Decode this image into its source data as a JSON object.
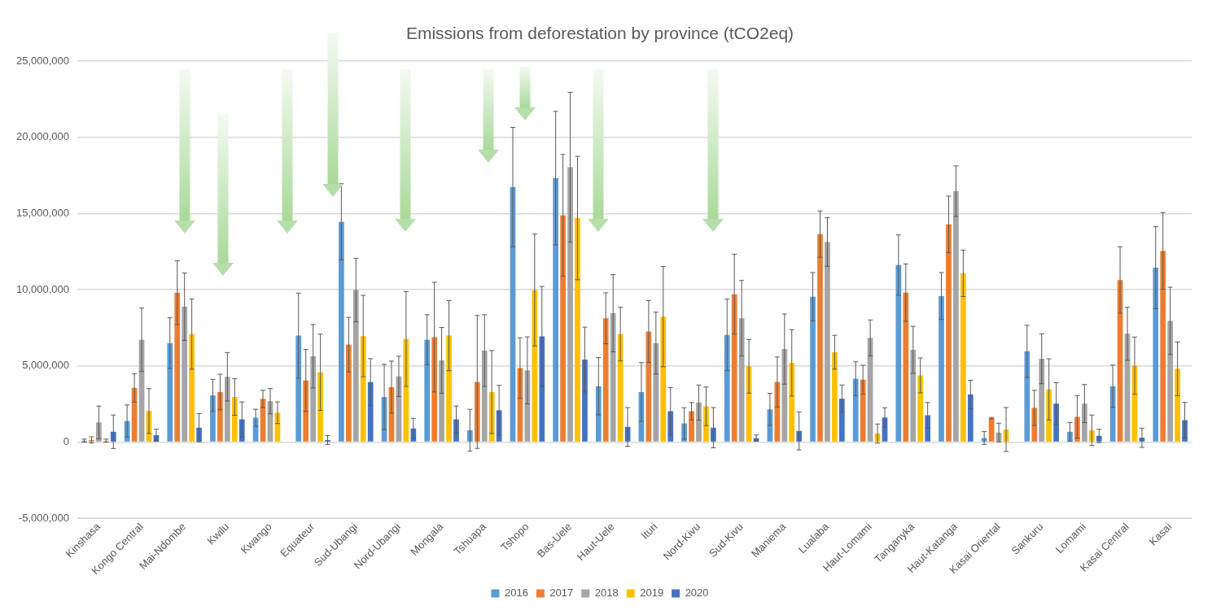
{
  "chart_data": {
    "type": "bar",
    "title": "Emissions from deforestation by province (tCO2eq)",
    "categories": [
      "Kinshasa",
      "Kongo Central",
      "Mai-Ndombe",
      "Kwilu",
      "Kwango",
      "Equateur",
      "Sud-Ubangi",
      "Nord-Ubangi",
      "Mongala",
      "Tshuapa",
      "Tshopo",
      "Bas-Uele",
      "Haut-Uele",
      "Ituri",
      "Nord-Kivu",
      "Sud-Kivu",
      "Maniema",
      "Lualaba",
      "Haut-Lomami",
      "Tanganyka",
      "Haut-Katanga",
      "Kasai Oriental",
      "Sankuru",
      "Lomami",
      "Kasai Central",
      "Kasai"
    ],
    "series": [
      {
        "name": "2016",
        "color": "#5b9bd5",
        "values": [
          100000,
          1390000,
          6500000,
          3070000,
          1600000,
          6990000,
          14460000,
          2960000,
          6720000,
          780000,
          16740000,
          17330000,
          3670000,
          3290000,
          1230000,
          7040000,
          2150000,
          9540000,
          4160000,
          11620000,
          9590000,
          270000,
          5960000,
          680000,
          3670000,
          11450000
        ],
        "errors": [
          100000,
          1050000,
          1660000,
          1050000,
          560000,
          2790000,
          2500000,
          2150000,
          1640000,
          1370000,
          3920000,
          4380000,
          1880000,
          1930000,
          1030000,
          2350000,
          1050000,
          1590000,
          1110000,
          1980000,
          1540000,
          420000,
          1710000,
          610000,
          1390000,
          2690000
        ]
      },
      {
        "name": "2017",
        "color": "#ed7d31",
        "values": [
          150000,
          3560000,
          9810000,
          3290000,
          2840000,
          4050000,
          6400000,
          3610000,
          6890000,
          3950000,
          4860000,
          14880000,
          8130000,
          7260000,
          2030000,
          9710000,
          3950000,
          13650000,
          4100000,
          9810000,
          14290000,
          1570000,
          2250000,
          1660000,
          10640000,
          12550000
        ],
        "errors": [
          200000,
          930000,
          2090000,
          1170000,
          570000,
          2030000,
          1790000,
          1710000,
          3600000,
          4360000,
          1990000,
          4000000,
          1670000,
          2030000,
          570000,
          2620000,
          1640000,
          1520000,
          950000,
          1880000,
          1860000,
          50000,
          1150000,
          1390000,
          2180000,
          2520000
        ]
      },
      {
        "name": "2018",
        "color": "#a5a5a5",
        "values": [
          1300000,
          6720000,
          8890000,
          4290000,
          2690000,
          5640000,
          9980000,
          4320000,
          5370000,
          6010000,
          4710000,
          18040000,
          8460000,
          6500000,
          2600000,
          8130000,
          6110000,
          13140000,
          6840000,
          6060000,
          16470000,
          630000,
          5470000,
          2530000,
          7110000,
          7960000
        ],
        "errors": [
          1070000,
          2080000,
          2210000,
          1590000,
          830000,
          2080000,
          2080000,
          1320000,
          2160000,
          2350000,
          2200000,
          4920000,
          2530000,
          2030000,
          1150000,
          2480000,
          2300000,
          1600000,
          1180000,
          1540000,
          1660000,
          610000,
          1640000,
          1250000,
          1740000,
          2210000
        ]
      },
      {
        "name": "2019",
        "color": "#ffc000",
        "values": [
          100000,
          2040000,
          7090000,
          2960000,
          1930000,
          4590000,
          6960000,
          6770000,
          6990000,
          3290000,
          9980000,
          14710000,
          7090000,
          8240000,
          2350000,
          4980000,
          5200000,
          5900000,
          560000,
          4380000,
          11080000,
          830000,
          3460000,
          780000,
          5020000,
          4810000
        ],
        "errors": [
          100000,
          1470000,
          2300000,
          1200000,
          710000,
          2500000,
          2670000,
          3110000,
          2300000,
          2720000,
          3670000,
          4050000,
          1760000,
          3290000,
          1270000,
          1760000,
          2180000,
          1110000,
          630000,
          1150000,
          1520000,
          1440000,
          2010000,
          1000000,
          1880000,
          1760000
        ]
      },
      {
        "name": "2020",
        "color": "#4472c4",
        "values": [
          680000,
          460000,
          950000,
          1490000,
          0,
          140000,
          3940000,
          900000,
          1490000,
          2090000,
          6940000,
          5420000,
          1000000,
          2030000,
          950000,
          270000,
          740000,
          2850000,
          1620000,
          1770000,
          3130000,
          0,
          2530000,
          410000,
          290000,
          1440000
        ],
        "errors": [
          1100000,
          390000,
          930000,
          1150000,
          null,
          290000,
          1540000,
          660000,
          880000,
          1640000,
          3280000,
          2130000,
          1270000,
          1550000,
          1320000,
          200000,
          1250000,
          900000,
          640000,
          830000,
          930000,
          null,
          1370000,
          440000,
          630000,
          1170000
        ]
      }
    ],
    "ylim": [
      -5000000,
      25000000
    ],
    "yticks": [
      {
        "value": -5000000,
        "label": "-5,000,000"
      },
      0,
      {
        "value": 5000000,
        "label": "5,000,000"
      },
      {
        "value": 10000000,
        "label": "10,000,000"
      },
      {
        "value": 15000000,
        "label": "15,000,000"
      },
      {
        "value": 20000000,
        "label": "20,000,000"
      },
      {
        "value": 25000000,
        "label": "25,000,000"
      }
    ],
    "grid": "y",
    "legend": "bottom"
  }
}
